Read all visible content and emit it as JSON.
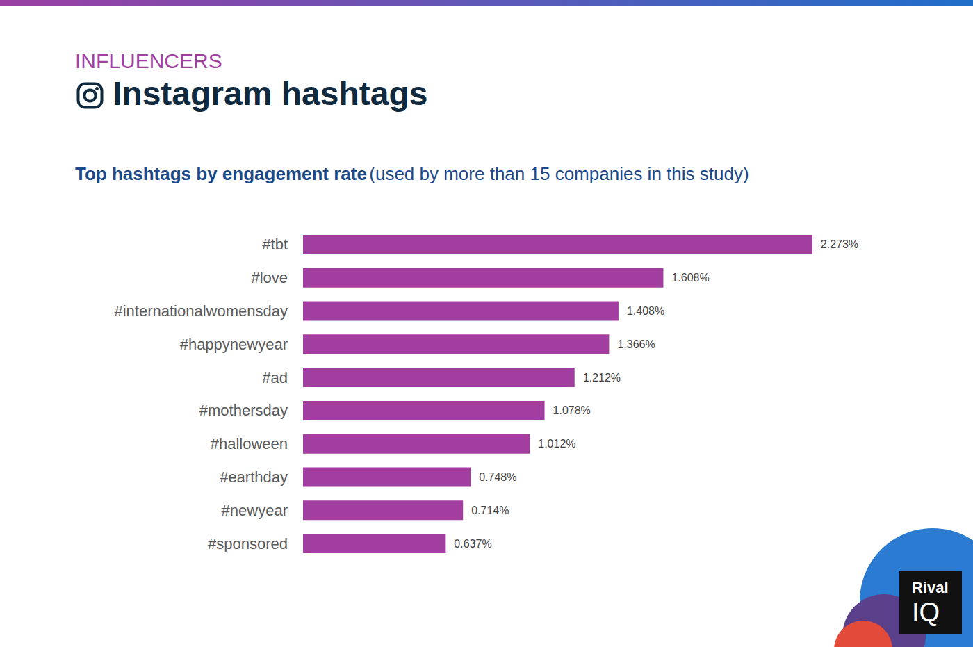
{
  "chart_data": {
    "type": "bar",
    "kicker": "INFLUENCERS",
    "title": "Instagram hashtags",
    "subtitle": "Top hashtags by engagement rate",
    "subtitle_note": "(used by more than 15 companies in this study)",
    "categories": [
      "#tbt",
      "#love",
      "#internationalwomensday",
      "#happynewyear",
      "#ad",
      "#mothersday",
      "#halloween",
      "#earthday",
      "#newyear",
      "#sponsored"
    ],
    "values": [
      2.273,
      1.608,
      1.408,
      1.366,
      1.212,
      1.078,
      1.012,
      0.748,
      0.714,
      0.637
    ],
    "value_labels": [
      "2.273%",
      "1.608%",
      "1.408%",
      "1.366%",
      "1.212%",
      "1.078%",
      "1.012%",
      "0.748%",
      "0.714%",
      "0.637%"
    ],
    "color": "#a33ea1",
    "xlim": [
      0,
      2.5
    ],
    "orientation": "horizontal",
    "data_labels": true,
    "grid": false,
    "tick_labels": "y",
    "annotations": [
      "Rival",
      "IQ"
    ]
  }
}
